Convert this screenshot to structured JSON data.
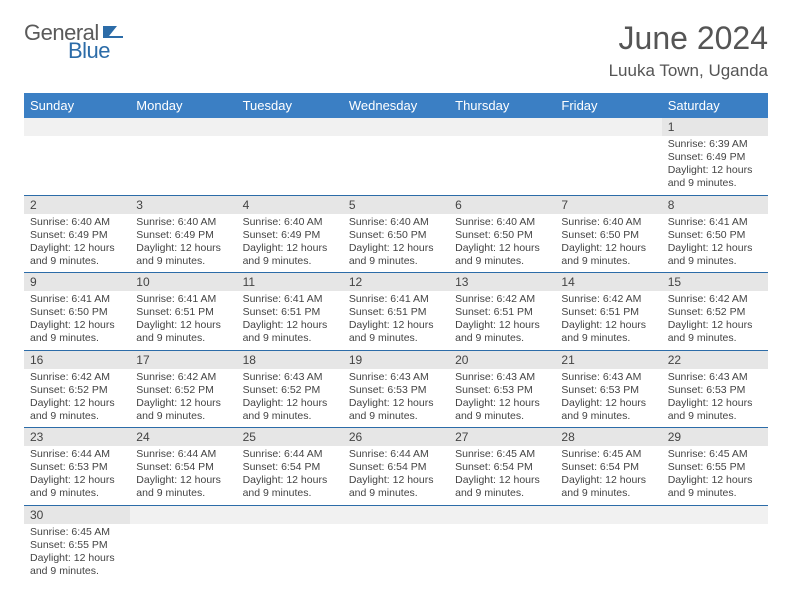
{
  "brand": {
    "name1": "General",
    "name2": "Blue"
  },
  "title": "June 2024",
  "location": "Luuka Town, Uganda",
  "colors": {
    "header_bg": "#3b7fc4",
    "rule": "#2c6ca8",
    "daybar": "#e6e6e6"
  },
  "weekdays": [
    "Sunday",
    "Monday",
    "Tuesday",
    "Wednesday",
    "Thursday",
    "Friday",
    "Saturday"
  ],
  "weeks": [
    [
      null,
      null,
      null,
      null,
      null,
      null,
      {
        "d": "1",
        "sr": "Sunrise: 6:39 AM",
        "ss": "Sunset: 6:49 PM",
        "dl": "Daylight: 12 hours and 9 minutes."
      }
    ],
    [
      {
        "d": "2",
        "sr": "Sunrise: 6:40 AM",
        "ss": "Sunset: 6:49 PM",
        "dl": "Daylight: 12 hours and 9 minutes."
      },
      {
        "d": "3",
        "sr": "Sunrise: 6:40 AM",
        "ss": "Sunset: 6:49 PM",
        "dl": "Daylight: 12 hours and 9 minutes."
      },
      {
        "d": "4",
        "sr": "Sunrise: 6:40 AM",
        "ss": "Sunset: 6:49 PM",
        "dl": "Daylight: 12 hours and 9 minutes."
      },
      {
        "d": "5",
        "sr": "Sunrise: 6:40 AM",
        "ss": "Sunset: 6:50 PM",
        "dl": "Daylight: 12 hours and 9 minutes."
      },
      {
        "d": "6",
        "sr": "Sunrise: 6:40 AM",
        "ss": "Sunset: 6:50 PM",
        "dl": "Daylight: 12 hours and 9 minutes."
      },
      {
        "d": "7",
        "sr": "Sunrise: 6:40 AM",
        "ss": "Sunset: 6:50 PM",
        "dl": "Daylight: 12 hours and 9 minutes."
      },
      {
        "d": "8",
        "sr": "Sunrise: 6:41 AM",
        "ss": "Sunset: 6:50 PM",
        "dl": "Daylight: 12 hours and 9 minutes."
      }
    ],
    [
      {
        "d": "9",
        "sr": "Sunrise: 6:41 AM",
        "ss": "Sunset: 6:50 PM",
        "dl": "Daylight: 12 hours and 9 minutes."
      },
      {
        "d": "10",
        "sr": "Sunrise: 6:41 AM",
        "ss": "Sunset: 6:51 PM",
        "dl": "Daylight: 12 hours and 9 minutes."
      },
      {
        "d": "11",
        "sr": "Sunrise: 6:41 AM",
        "ss": "Sunset: 6:51 PM",
        "dl": "Daylight: 12 hours and 9 minutes."
      },
      {
        "d": "12",
        "sr": "Sunrise: 6:41 AM",
        "ss": "Sunset: 6:51 PM",
        "dl": "Daylight: 12 hours and 9 minutes."
      },
      {
        "d": "13",
        "sr": "Sunrise: 6:42 AM",
        "ss": "Sunset: 6:51 PM",
        "dl": "Daylight: 12 hours and 9 minutes."
      },
      {
        "d": "14",
        "sr": "Sunrise: 6:42 AM",
        "ss": "Sunset: 6:51 PM",
        "dl": "Daylight: 12 hours and 9 minutes."
      },
      {
        "d": "15",
        "sr": "Sunrise: 6:42 AM",
        "ss": "Sunset: 6:52 PM",
        "dl": "Daylight: 12 hours and 9 minutes."
      }
    ],
    [
      {
        "d": "16",
        "sr": "Sunrise: 6:42 AM",
        "ss": "Sunset: 6:52 PM",
        "dl": "Daylight: 12 hours and 9 minutes."
      },
      {
        "d": "17",
        "sr": "Sunrise: 6:42 AM",
        "ss": "Sunset: 6:52 PM",
        "dl": "Daylight: 12 hours and 9 minutes."
      },
      {
        "d": "18",
        "sr": "Sunrise: 6:43 AM",
        "ss": "Sunset: 6:52 PM",
        "dl": "Daylight: 12 hours and 9 minutes."
      },
      {
        "d": "19",
        "sr": "Sunrise: 6:43 AM",
        "ss": "Sunset: 6:53 PM",
        "dl": "Daylight: 12 hours and 9 minutes."
      },
      {
        "d": "20",
        "sr": "Sunrise: 6:43 AM",
        "ss": "Sunset: 6:53 PM",
        "dl": "Daylight: 12 hours and 9 minutes."
      },
      {
        "d": "21",
        "sr": "Sunrise: 6:43 AM",
        "ss": "Sunset: 6:53 PM",
        "dl": "Daylight: 12 hours and 9 minutes."
      },
      {
        "d": "22",
        "sr": "Sunrise: 6:43 AM",
        "ss": "Sunset: 6:53 PM",
        "dl": "Daylight: 12 hours and 9 minutes."
      }
    ],
    [
      {
        "d": "23",
        "sr": "Sunrise: 6:44 AM",
        "ss": "Sunset: 6:53 PM",
        "dl": "Daylight: 12 hours and 9 minutes."
      },
      {
        "d": "24",
        "sr": "Sunrise: 6:44 AM",
        "ss": "Sunset: 6:54 PM",
        "dl": "Daylight: 12 hours and 9 minutes."
      },
      {
        "d": "25",
        "sr": "Sunrise: 6:44 AM",
        "ss": "Sunset: 6:54 PM",
        "dl": "Daylight: 12 hours and 9 minutes."
      },
      {
        "d": "26",
        "sr": "Sunrise: 6:44 AM",
        "ss": "Sunset: 6:54 PM",
        "dl": "Daylight: 12 hours and 9 minutes."
      },
      {
        "d": "27",
        "sr": "Sunrise: 6:45 AM",
        "ss": "Sunset: 6:54 PM",
        "dl": "Daylight: 12 hours and 9 minutes."
      },
      {
        "d": "28",
        "sr": "Sunrise: 6:45 AM",
        "ss": "Sunset: 6:54 PM",
        "dl": "Daylight: 12 hours and 9 minutes."
      },
      {
        "d": "29",
        "sr": "Sunrise: 6:45 AM",
        "ss": "Sunset: 6:55 PM",
        "dl": "Daylight: 12 hours and 9 minutes."
      }
    ],
    [
      {
        "d": "30",
        "sr": "Sunrise: 6:45 AM",
        "ss": "Sunset: 6:55 PM",
        "dl": "Daylight: 12 hours and 9 minutes."
      },
      null,
      null,
      null,
      null,
      null,
      null
    ]
  ]
}
